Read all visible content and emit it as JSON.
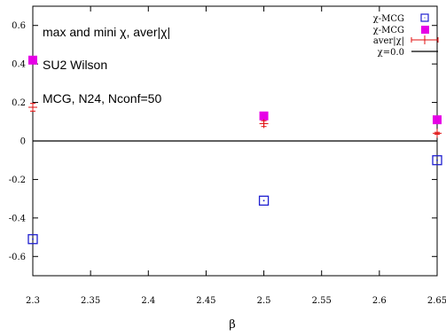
{
  "chart_data": {
    "type": "scatter",
    "title": "",
    "xlabel": "β",
    "ylabel": "",
    "xlim": [
      2.3,
      2.65
    ],
    "ylim": [
      -0.7,
      0.7
    ],
    "grid": false,
    "legend_position": "top-right",
    "x_ticks": [
      "2.3",
      "2.35",
      "2.4",
      "2.45",
      "2.5",
      "2.55",
      "2.6",
      "2.65"
    ],
    "y_ticks": [
      "-0.6",
      "-0.4",
      "-0.2",
      "0",
      "0.2",
      "0.4",
      "0.6"
    ],
    "annotations": [
      "max and mini χ, aver|χ|",
      "SU2 Wilson",
      "MCG, N24, Nconf=50"
    ],
    "series": [
      {
        "name": "χ-MCG",
        "marker": "open-square",
        "color": "#1f1fd0",
        "points": [
          {
            "x": 2.3,
            "y": -0.51
          },
          {
            "x": 2.5,
            "y": -0.31
          },
          {
            "x": 2.65,
            "y": -0.1
          }
        ]
      },
      {
        "name": "χ-MCG",
        "marker": "filled-square",
        "color": "#e600e6",
        "points": [
          {
            "x": 2.3,
            "y": 0.42
          },
          {
            "x": 2.5,
            "y": 0.13
          },
          {
            "x": 2.65,
            "y": 0.11
          }
        ]
      },
      {
        "name": "aver|χ|",
        "marker": "plus-errorbar",
        "color": "#e01010",
        "points": [
          {
            "x": 2.3,
            "y": 0.175,
            "err": 0.02
          },
          {
            "x": 2.5,
            "y": 0.09,
            "err": 0.015
          },
          {
            "x": 2.65,
            "y": 0.04,
            "err": 0.005
          }
        ]
      },
      {
        "name": "χ=0.0",
        "marker": "line",
        "color": "#000000",
        "y": 0.0
      }
    ]
  }
}
